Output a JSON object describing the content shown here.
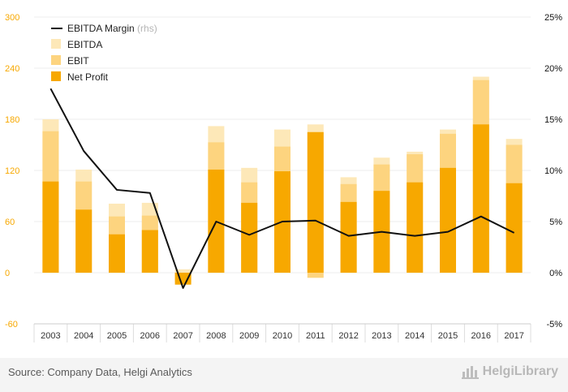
{
  "chart_data": {
    "type": "bar",
    "categories": [
      "2003",
      "2004",
      "2005",
      "2006",
      "2007",
      "2008",
      "2009",
      "2010",
      "2011",
      "2012",
      "2013",
      "2014",
      "2015",
      "2016",
      "2017"
    ],
    "series": [
      {
        "name": "EBITDA",
        "kind": "bar-overlay",
        "color": "#fde8b8",
        "values": [
          180,
          121,
          81,
          82,
          4,
          172,
          123,
          168,
          174,
          112,
          135,
          142,
          168,
          230,
          157
        ]
      },
      {
        "name": "EBIT",
        "kind": "bar-overlay",
        "color": "#fdd47f",
        "values": [
          166,
          107,
          66,
          67,
          -11,
          153,
          106,
          148,
          -6,
          104,
          127,
          139,
          163,
          226,
          150
        ]
      },
      {
        "name": "Net Profit",
        "kind": "bar-overlay",
        "color": "#f7a800",
        "values": [
          107,
          74,
          45,
          50,
          -14,
          121,
          82,
          119,
          165,
          83,
          96,
          106,
          123,
          174,
          105
        ]
      },
      {
        "name": "EBITDA Margin",
        "name_suffix": "(rhs)",
        "kind": "line",
        "axis": "right",
        "color": "#111111",
        "values": [
          18.0,
          11.9,
          8.1,
          7.8,
          -1.5,
          5.0,
          3.7,
          5.0,
          5.1,
          3.6,
          4.0,
          3.6,
          4.0,
          5.5,
          3.9
        ]
      }
    ],
    "y_left": {
      "min": -60,
      "max": 300,
      "ticks": [
        "300",
        "240",
        "180",
        "120",
        "60",
        "0",
        "-60"
      ],
      "tick_values": [
        300,
        240,
        180,
        120,
        60,
        0,
        -60
      ]
    },
    "y_right": {
      "min": -5,
      "max": 25,
      "ticks": [
        "25%",
        "20%",
        "15%",
        "10%",
        "5%",
        "0%",
        "-5%"
      ],
      "tick_values": [
        25,
        20,
        15,
        10,
        5,
        0,
        -5
      ]
    },
    "grid": true,
    "legend_position": "top-left"
  },
  "footer": {
    "source": "Source: Company Data, Helgi Analytics",
    "logo_text": "HelgiLibrary",
    "logo_icon": "bar-chart-logo-icon"
  },
  "colors": {
    "axis_left": "#f7a800",
    "axis_right": "#111111",
    "grid": "#ececec",
    "legend_suffix": "#b5b5b5"
  }
}
